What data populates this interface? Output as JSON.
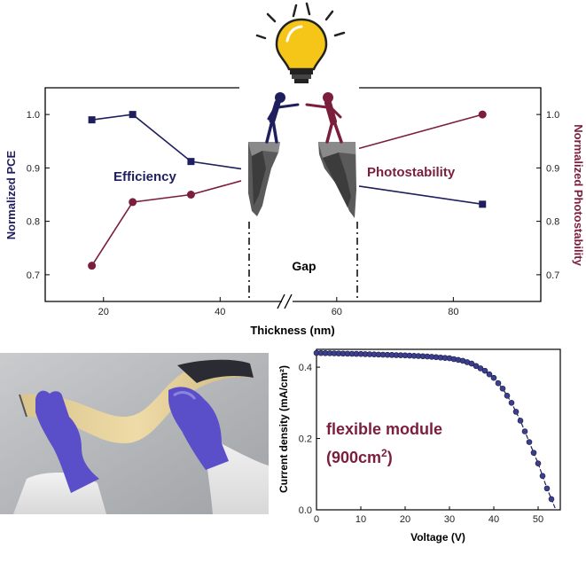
{
  "colors": {
    "pce": "#1f1f5e",
    "photostability": "#7b1e3c",
    "ink": "#000000",
    "bulb": "#f5c518",
    "glove": "#5b4fc9",
    "film": "#e6cf97"
  },
  "chart_data": [
    {
      "type": "line",
      "xlabel": "Thickness (nm)",
      "ylabel_left": "Normalized PCE",
      "ylabel_right": "Normalized Photostability",
      "xlim": [
        10,
        95
      ],
      "ylim_left": [
        0.65,
        1.05
      ],
      "ylim_right": [
        0.65,
        1.05
      ],
      "x_axis_break": "//",
      "x_ticks": [
        {
          "value": 20,
          "label": "20"
        },
        {
          "value": 40,
          "label": "40"
        },
        {
          "value": 60,
          "label": "60"
        },
        {
          "value": 80,
          "label": "80"
        }
      ],
      "y_ticks_left": [
        {
          "value": 0.7,
          "label": "0.7"
        },
        {
          "value": 0.8,
          "label": "0.8"
        },
        {
          "value": 0.9,
          "label": "0.9"
        },
        {
          "value": 1.0,
          "label": "1.0"
        }
      ],
      "y_ticks_right": [
        {
          "value": 0.7,
          "label": "0.7"
        },
        {
          "value": 0.8,
          "label": "0.8"
        },
        {
          "value": 0.9,
          "label": "0.9"
        },
        {
          "value": 1.0,
          "label": "1.0"
        }
      ],
      "series": [
        {
          "name": "Efficiency",
          "axis": "left",
          "marker": "square",
          "color": "#1f1f5e",
          "points": [
            {
              "x": 18,
              "y": 0.99
            },
            {
              "x": 25,
              "y": 1.0
            },
            {
              "x": 35,
              "y": 0.912
            },
            {
              "x": 85,
              "y": 0.832
            }
          ]
        },
        {
          "name": "Photostability",
          "axis": "right",
          "marker": "circle",
          "color": "#7b1e3c",
          "points": [
            {
              "x": 18,
              "y": 0.717
            },
            {
              "x": 25,
              "y": 0.836
            },
            {
              "x": 35,
              "y": 0.85
            },
            {
              "x": 85,
              "y": 1.0
            }
          ]
        }
      ],
      "annotations": {
        "gap_label": "Gap"
      }
    },
    {
      "type": "line",
      "xlabel": "Voltage (V)",
      "ylabel": "Current density (mA/cm²)",
      "xlim": [
        0,
        55
      ],
      "ylim": [
        0,
        0.45
      ],
      "x_ticks": [
        {
          "value": 0,
          "label": "0"
        },
        {
          "value": 10,
          "label": "10"
        },
        {
          "value": 20,
          "label": "20"
        },
        {
          "value": 30,
          "label": "30"
        },
        {
          "value": 40,
          "label": "40"
        },
        {
          "value": 50,
          "label": "50"
        }
      ],
      "y_ticks": [
        {
          "value": 0.0,
          "label": "0.0"
        },
        {
          "value": 0.2,
          "label": "0.2"
        },
        {
          "value": 0.4,
          "label": "0.4"
        }
      ],
      "annotation": {
        "line1": "flexible module",
        "line2_base": "(900cm",
        "line2_sup": "2",
        "line2_end": ")"
      },
      "marker_x": [
        0,
        1,
        2,
        3,
        4,
        5,
        6,
        7,
        8,
        9,
        10,
        11,
        12,
        13,
        14,
        15,
        16,
        17,
        18,
        19,
        20,
        21,
        22,
        23,
        24,
        25,
        26,
        27,
        28,
        29,
        30,
        31,
        32,
        33,
        34,
        35,
        36,
        37,
        38,
        39,
        40,
        41,
        42,
        43,
        44,
        45,
        46,
        47,
        48,
        49,
        50,
        51,
        52,
        53
      ],
      "series": [
        {
          "points": [
            {
              "x": 0,
              "y": 0.44
            },
            {
              "x": 10,
              "y": 0.437
            },
            {
              "x": 20,
              "y": 0.433
            },
            {
              "x": 25,
              "y": 0.43
            },
            {
              "x": 30,
              "y": 0.425
            },
            {
              "x": 33,
              "y": 0.418
            },
            {
              "x": 35,
              "y": 0.41
            },
            {
              "x": 38,
              "y": 0.39
            },
            {
              "x": 40,
              "y": 0.37
            },
            {
              "x": 42,
              "y": 0.34
            },
            {
              "x": 44,
              "y": 0.3
            },
            {
              "x": 46,
              "y": 0.25
            },
            {
              "x": 48,
              "y": 0.19
            },
            {
              "x": 50,
              "y": 0.13
            },
            {
              "x": 52,
              "y": 0.06
            },
            {
              "x": 53,
              "y": 0.03
            },
            {
              "x": 54,
              "y": 0.0
            }
          ]
        }
      ]
    }
  ]
}
